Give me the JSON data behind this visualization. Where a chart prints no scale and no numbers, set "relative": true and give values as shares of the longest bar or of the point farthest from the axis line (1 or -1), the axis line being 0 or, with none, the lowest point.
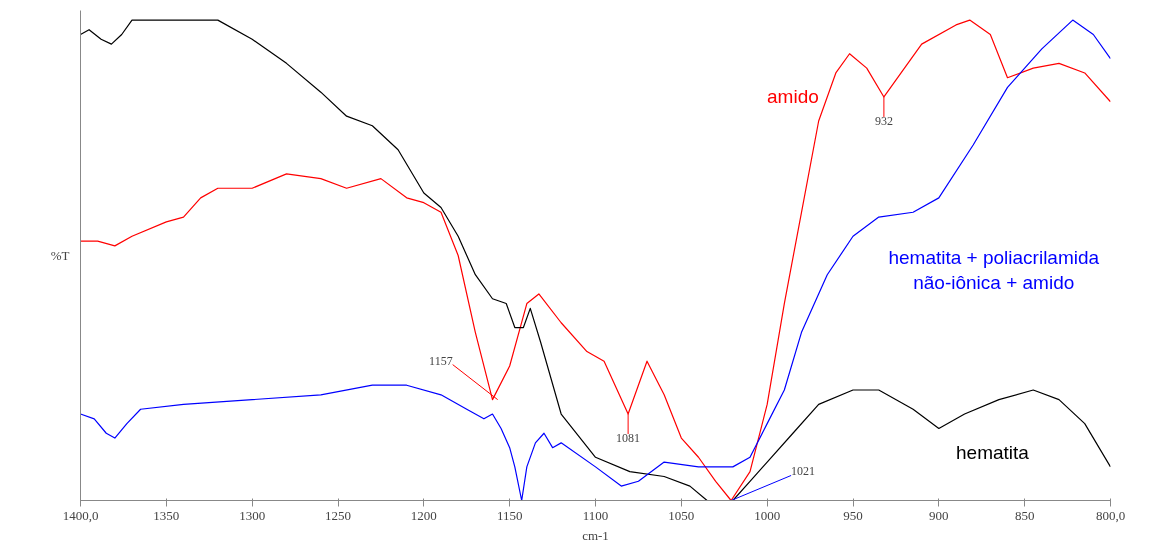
{
  "chart_data": {
    "type": "line",
    "relative": true,
    "xlabel": "cm-1",
    "ylabel": "%T",
    "xlim": [
      1400,
      800
    ],
    "xticks": [
      {
        "value": 1400,
        "label": "1400,0"
      },
      1350,
      1300,
      1250,
      1200,
      1150,
      1100,
      1050,
      1000,
      950,
      900,
      850,
      {
        "value": 800,
        "label": "800,0"
      }
    ],
    "grid": false,
    "legend": false,
    "marker": "none",
    "line_style": "solid",
    "series": [
      {
        "name": "amido",
        "color": "#ff0000",
        "x": [
          1400,
          1390,
          1380,
          1370,
          1350,
          1340,
          1330,
          1320,
          1300,
          1280,
          1260,
          1245,
          1225,
          1210,
          1200,
          1190,
          1180,
          1170,
          1160,
          1150,
          1140,
          1133,
          1120,
          1105,
          1095,
          1081,
          1070,
          1060,
          1050,
          1040,
          1030,
          1021,
          1010,
          1000,
          990,
          980,
          970,
          960,
          952,
          942,
          932,
          922,
          910,
          890,
          882,
          870,
          860,
          845,
          830,
          815,
          800
        ],
        "values": [
          0.54,
          0.54,
          0.53,
          0.55,
          0.58,
          0.59,
          0.63,
          0.65,
          0.65,
          0.68,
          0.67,
          0.65,
          0.67,
          0.63,
          0.62,
          0.6,
          0.51,
          0.35,
          0.21,
          0.28,
          0.41,
          0.43,
          0.37,
          0.31,
          0.29,
          0.18,
          0.29,
          0.22,
          0.13,
          0.09,
          0.04,
          0.0,
          0.06,
          0.2,
          0.41,
          0.6,
          0.79,
          0.89,
          0.93,
          0.9,
          0.84,
          0.89,
          0.95,
          0.99,
          1.0,
          0.97,
          0.88,
          0.9,
          0.91,
          0.89,
          0.83
        ]
      },
      {
        "name": "hematita",
        "color": "#000000",
        "x": [
          1400,
          1395,
          1388,
          1382,
          1376,
          1370,
          1350,
          1320,
          1300,
          1280,
          1260,
          1245,
          1230,
          1215,
          1200,
          1190,
          1180,
          1170,
          1160,
          1152,
          1147,
          1142,
          1138,
          1132,
          1120,
          1100,
          1080,
          1060,
          1045,
          1035,
          1020,
          1010,
          1000,
          985,
          970,
          950,
          935,
          915,
          900,
          885,
          865,
          845,
          830,
          815,
          800
        ],
        "values": [
          0.97,
          0.98,
          0.96,
          0.95,
          0.97,
          1.0,
          1.0,
          1.0,
          0.96,
          0.91,
          0.85,
          0.8,
          0.78,
          0.73,
          0.64,
          0.61,
          0.55,
          0.47,
          0.42,
          0.41,
          0.36,
          0.36,
          0.4,
          0.33,
          0.18,
          0.09,
          0.06,
          0.05,
          0.03,
          0.0,
          0.0,
          0.04,
          0.08,
          0.14,
          0.2,
          0.23,
          0.23,
          0.19,
          0.15,
          0.18,
          0.21,
          0.23,
          0.21,
          0.16,
          0.07
        ]
      },
      {
        "name": "hematita + poliacrilamida não-iônica + amido",
        "color": "#0000ff",
        "x": [
          1400,
          1392,
          1385,
          1380,
          1373,
          1365,
          1340,
          1300,
          1260,
          1230,
          1210,
          1190,
          1175,
          1165,
          1160,
          1155,
          1150,
          1147,
          1143,
          1140,
          1135,
          1130,
          1125,
          1120,
          1100,
          1085,
          1075,
          1060,
          1040,
          1020,
          1010,
          1000,
          990,
          980,
          965,
          950,
          935,
          915,
          900,
          880,
          860,
          840,
          822,
          810,
          800
        ],
        "values": [
          0.18,
          0.17,
          0.14,
          0.13,
          0.16,
          0.19,
          0.2,
          0.21,
          0.22,
          0.24,
          0.24,
          0.22,
          0.19,
          0.17,
          0.18,
          0.15,
          0.11,
          0.07,
          0.0,
          0.07,
          0.12,
          0.14,
          0.11,
          0.12,
          0.07,
          0.03,
          0.04,
          0.08,
          0.07,
          0.07,
          0.09,
          0.16,
          0.23,
          0.35,
          0.47,
          0.55,
          0.59,
          0.6,
          0.63,
          0.74,
          0.86,
          0.94,
          1.0,
          0.97,
          0.92
        ]
      }
    ],
    "annotations": [
      {
        "text": "1157",
        "x": 1157,
        "y": 0.21
      },
      {
        "text": "1081",
        "x": 1081,
        "y": 0.18
      },
      {
        "text": "932",
        "x": 932,
        "y": 0.84
      },
      {
        "text": "1021",
        "x": 1021,
        "y": 0.0
      }
    ]
  }
}
